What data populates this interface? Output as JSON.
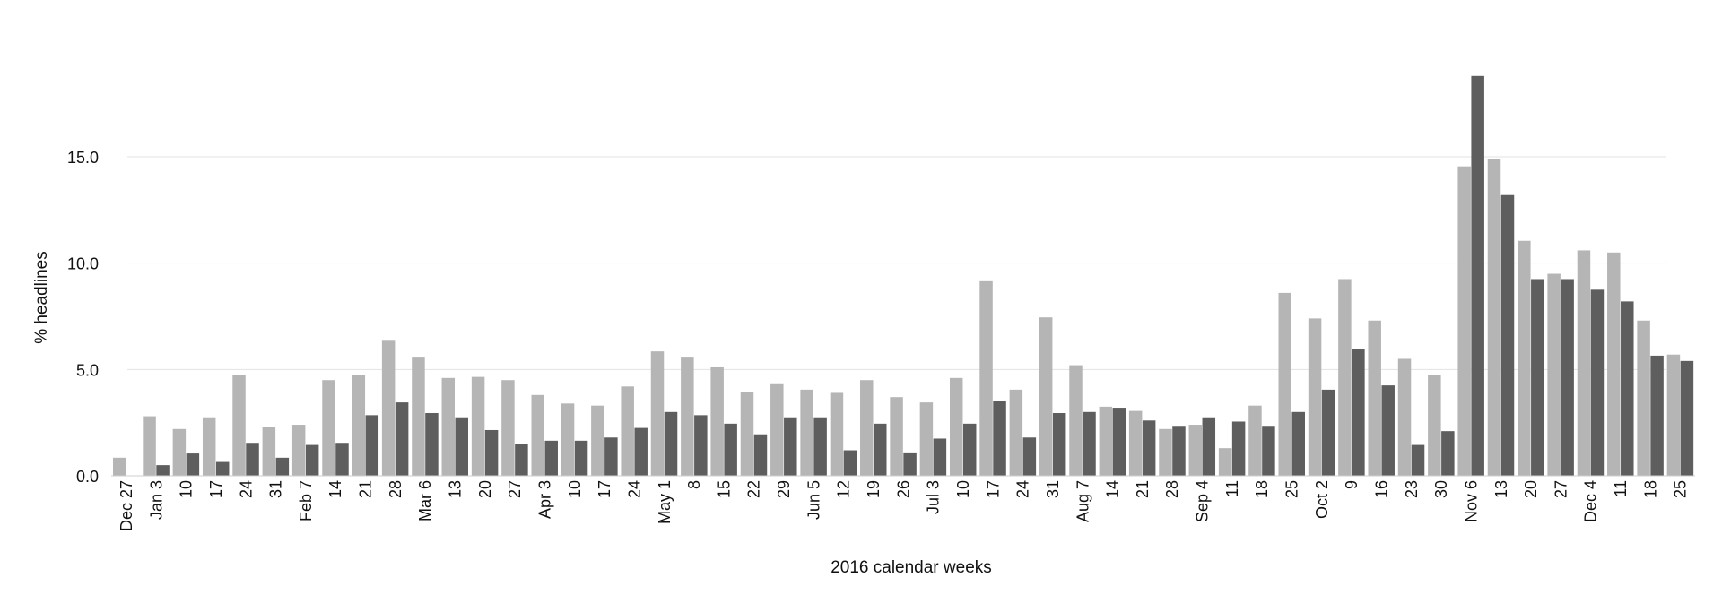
{
  "chart_data": {
    "type": "bar",
    "title": "",
    "xlabel": "2016 calendar weeks",
    "ylabel": "% headlines",
    "ylim": [
      0,
      19
    ],
    "yticks": [
      "0.0",
      "5.0",
      "10.0",
      "15.0"
    ],
    "ytick_values": [
      0,
      5,
      10,
      15
    ],
    "grid": true,
    "legend": "none",
    "categories": [
      "Dec 27",
      "Jan 3",
      "10",
      "17",
      "24",
      "31",
      "Feb 7",
      "14",
      "21",
      "28",
      "Mar 6",
      "13",
      "20",
      "27",
      "Apr 3",
      "10",
      "17",
      "24",
      "May 1",
      "8",
      "15",
      "22",
      "29",
      "Jun 5",
      "12",
      "19",
      "26",
      "Jul 3",
      "10",
      "17",
      "24",
      "31",
      "Aug 7",
      "14",
      "21",
      "28",
      "Sep 4",
      "11",
      "18",
      "25",
      "Oct 2",
      "9",
      "16",
      "23",
      "30",
      "Nov 6",
      "13",
      "20",
      "27",
      "Dec 4",
      "11",
      "18",
      "25"
    ],
    "series": [
      {
        "color": "#b5b5b5",
        "values": [
          0.85,
          2.8,
          2.2,
          2.75,
          4.75,
          2.3,
          2.4,
          4.5,
          4.75,
          6.35,
          5.6,
          4.6,
          4.65,
          4.5,
          3.8,
          3.4,
          3.3,
          4.2,
          5.85,
          5.6,
          5.1,
          3.95,
          4.35,
          4.05,
          3.9,
          4.5,
          3.7,
          3.45,
          4.6,
          9.15,
          4.05,
          7.45,
          5.2,
          3.25,
          3.05,
          2.2,
          2.4,
          1.3,
          3.3,
          8.6,
          7.4,
          9.25,
          7.3,
          5.5,
          4.75,
          14.55,
          14.9,
          11.05,
          9.5,
          10.6,
          10.5,
          7.3,
          5.7
        ]
      },
      {
        "color": "#5e5e5e",
        "values": [
          0,
          0.5,
          1.05,
          0.65,
          1.55,
          0.85,
          1.45,
          1.55,
          2.85,
          3.45,
          2.95,
          2.75,
          2.15,
          1.5,
          1.65,
          1.65,
          1.8,
          2.25,
          3.0,
          2.85,
          2.45,
          1.95,
          2.75,
          2.75,
          1.2,
          2.45,
          1.1,
          1.75,
          2.45,
          3.5,
          1.8,
          2.95,
          3.0,
          3.2,
          2.6,
          2.35,
          2.75,
          2.55,
          2.35,
          3.0,
          4.05,
          5.95,
          4.25,
          1.45,
          2.1,
          18.8,
          13.2,
          9.25,
          9.25,
          8.75,
          8.2,
          5.65,
          5.4
        ]
      }
    ]
  }
}
